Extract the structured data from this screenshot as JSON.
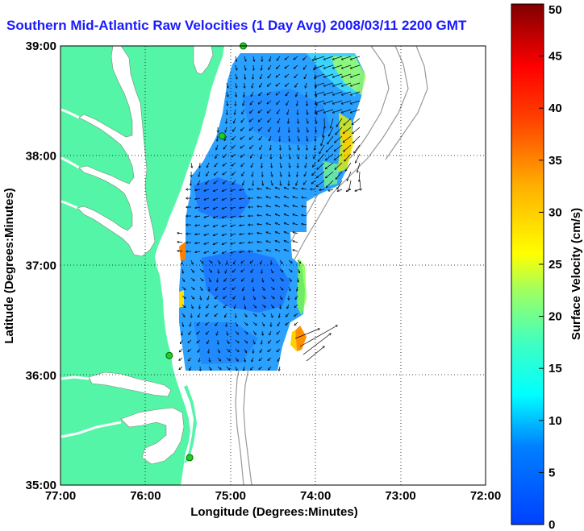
{
  "title": "Southern Mid-Atlantic Raw Velocities (1 Day Avg) 2008/03/11 2200 GMT",
  "map": {
    "x_axis_label": "Longitude (Degrees:Minutes)",
    "y_axis_label": "Latitude (Degrees:Minutes)",
    "x_ticks": [
      "77:00",
      "76:00",
      "75:00",
      "74:00",
      "73:00",
      "72:00"
    ],
    "y_ticks": [
      "39:00",
      "38:00",
      "37:00",
      "36:00",
      "35:00"
    ],
    "lon_range": [
      -77,
      -72
    ],
    "lat_range": [
      35,
      39
    ],
    "land_color": "#55f5a8",
    "stations": [
      {
        "lon": -74.85,
        "lat": 39.0
      },
      {
        "lon": -75.1,
        "lat": 38.18
      },
      {
        "lon": -75.72,
        "lat": 36.18
      },
      {
        "lon": -75.48,
        "lat": 35.25
      }
    ]
  },
  "colorbar": {
    "label": "Surface Velocity (cm/s)",
    "ticks": [
      "0",
      "5",
      "10",
      "15",
      "20",
      "25",
      "30",
      "35",
      "40",
      "45",
      "50"
    ],
    "range": [
      0,
      50
    ]
  }
}
